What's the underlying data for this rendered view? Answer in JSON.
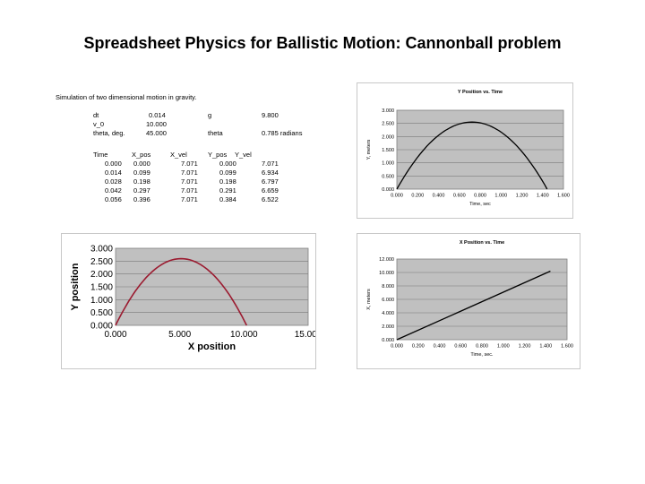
{
  "page": {
    "title": "Spreadsheet Physics for Ballistic Motion: Cannonball problem"
  },
  "sheet": {
    "caption": "Simulation of two dimensional motion in gravity.",
    "params": [
      [
        "dt",
        "0.014",
        "g",
        "9.800"
      ],
      [
        "v_0",
        "10.000",
        "",
        ""
      ],
      [
        "theta, deg.",
        "45.000",
        "theta",
        "0.785 radians"
      ]
    ],
    "headers": [
      "Time",
      "X_pos",
      "X_vel",
      "Y_pos",
      "Y_vel"
    ],
    "rows": [
      [
        "0.000",
        "0.000",
        "7.071",
        "0.000",
        "7.071"
      ],
      [
        "0.014",
        "0.099",
        "7.071",
        "0.099",
        "6.934"
      ],
      [
        "0.028",
        "0.198",
        "7.071",
        "0.198",
        "6.797"
      ],
      [
        "0.042",
        "0.297",
        "7.071",
        "0.291",
        "6.659"
      ],
      [
        "0.056",
        "0.396",
        "7.071",
        "0.384",
        "6.522"
      ]
    ]
  },
  "chart_data": [
    {
      "id": "yt",
      "type": "line",
      "title": "Y Position vs. Time",
      "xlabel": "Time, sec",
      "ylabel": "Y, meters",
      "xlim": [
        0,
        1.6
      ],
      "ylim": [
        0,
        3.0
      ],
      "xticks": [
        "0.000",
        "0.200",
        "0.400",
        "0.600",
        "0.800",
        "1.000",
        "1.200",
        "1.400",
        "1.600"
      ],
      "yticks": [
        "0.000",
        "0.500",
        "1.000",
        "1.500",
        "2.000",
        "2.500",
        "3.000"
      ],
      "curve": "parabola",
      "x": [
        0.0,
        0.1,
        0.2,
        0.3,
        0.4,
        0.5,
        0.6,
        0.7,
        0.722,
        0.8,
        0.9,
        1.0,
        1.1,
        1.2,
        1.3,
        1.4,
        1.443
      ],
      "y": [
        0.0,
        0.658,
        1.218,
        1.68,
        2.044,
        2.311,
        2.479,
        2.549,
        2.551,
        2.521,
        2.395,
        2.171,
        1.849,
        1.429,
        0.911,
        0.295,
        0.0
      ],
      "plot_bg": "#c0c0c0",
      "line_color": "#000000"
    },
    {
      "id": "xy",
      "type": "line",
      "title": "",
      "xlabel": "X position",
      "ylabel": "Y position",
      "xlim": [
        0,
        15
      ],
      "ylim": [
        0,
        3.0
      ],
      "xticks": [
        "0.000",
        "5.000",
        "10.000",
        "15.000"
      ],
      "yticks": [
        "0.000",
        "0.500",
        "1.000",
        "1.500",
        "2.000",
        "2.500",
        "3.000"
      ],
      "x": [
        0.0,
        1.0,
        2.0,
        3.0,
        4.0,
        5.0,
        5.102,
        6.0,
        7.0,
        8.0,
        9.0,
        10.0,
        10.204
      ],
      "y": [
        0.0,
        0.904,
        1.616,
        2.135,
        2.462,
        2.596,
        2.551,
        2.538,
        2.287,
        1.844,
        1.208,
        0.38,
        0.0
      ],
      "plot_bg": "#c0c0c0",
      "line_color": "#9b1b30"
    },
    {
      "id": "xt",
      "type": "line",
      "title": "X Position vs. Time",
      "xlabel": "Time, sec.",
      "ylabel": "X, meters",
      "xlim": [
        0,
        1.6
      ],
      "ylim": [
        0,
        12.0
      ],
      "xticks": [
        "0.000",
        "0.200",
        "0.400",
        "0.600",
        "0.800",
        "1.000",
        "1.200",
        "1.400",
        "1.600"
      ],
      "yticks": [
        "0.000",
        "2.000",
        "4.000",
        "6.000",
        "8.000",
        "10.000",
        "12.000"
      ],
      "x": [
        0.0,
        1.443
      ],
      "y": [
        0.0,
        10.204
      ],
      "plot_bg": "#c0c0c0",
      "line_color": "#000000"
    }
  ]
}
